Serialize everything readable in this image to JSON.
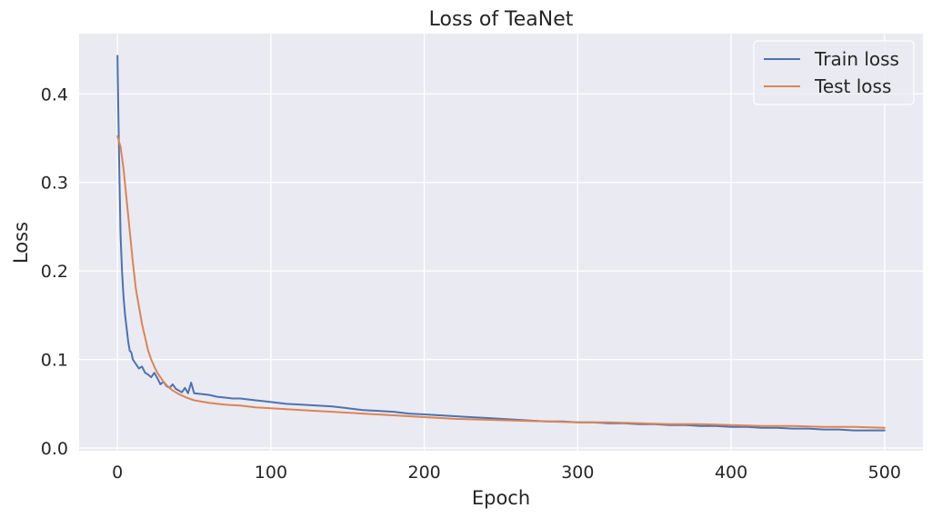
{
  "chart_data": {
    "type": "line",
    "title": "Loss of TeaNet",
    "xlabel": "Epoch",
    "ylabel": "Loss",
    "xlim": [
      -25,
      525
    ],
    "ylim": [
      -0.003,
      0.468
    ],
    "xticks": [
      0,
      100,
      200,
      300,
      400,
      500
    ],
    "xtick_labels": [
      "0",
      "100",
      "200",
      "300",
      "400",
      "500"
    ],
    "yticks": [
      0.0,
      0.1,
      0.2,
      0.3,
      0.4
    ],
    "ytick_labels": [
      "0.0",
      "0.1",
      "0.2",
      "0.3",
      "0.4"
    ],
    "grid": true,
    "legend_position": "top-right",
    "background": "#eaeaf2",
    "series": [
      {
        "name": "Train loss",
        "color": "#4c72b0",
        "x": [
          0,
          1,
          2,
          3,
          4,
          5,
          6,
          7,
          8,
          9,
          10,
          12,
          14,
          16,
          18,
          20,
          22,
          24,
          26,
          28,
          30,
          32,
          34,
          36,
          38,
          40,
          42,
          44,
          46,
          48,
          50,
          55,
          60,
          65,
          70,
          75,
          80,
          85,
          90,
          95,
          100,
          110,
          120,
          130,
          140,
          150,
          160,
          170,
          180,
          190,
          200,
          210,
          220,
          230,
          240,
          250,
          260,
          270,
          280,
          290,
          300,
          310,
          320,
          330,
          340,
          350,
          360,
          370,
          380,
          390,
          400,
          410,
          420,
          430,
          440,
          450,
          460,
          470,
          480,
          490,
          500
        ],
        "y": [
          0.443,
          0.33,
          0.24,
          0.2,
          0.17,
          0.15,
          0.135,
          0.12,
          0.11,
          0.108,
          0.1,
          0.095,
          0.09,
          0.092,
          0.085,
          0.083,
          0.08,
          0.085,
          0.079,
          0.072,
          0.075,
          0.07,
          0.068,
          0.072,
          0.067,
          0.065,
          0.063,
          0.068,
          0.062,
          0.074,
          0.062,
          0.061,
          0.06,
          0.058,
          0.057,
          0.056,
          0.056,
          0.055,
          0.054,
          0.053,
          0.052,
          0.05,
          0.049,
          0.048,
          0.047,
          0.045,
          0.043,
          0.042,
          0.041,
          0.039,
          0.038,
          0.037,
          0.036,
          0.035,
          0.034,
          0.033,
          0.032,
          0.031,
          0.03,
          0.03,
          0.029,
          0.029,
          0.028,
          0.028,
          0.027,
          0.027,
          0.026,
          0.026,
          0.025,
          0.025,
          0.024,
          0.024,
          0.023,
          0.023,
          0.022,
          0.022,
          0.021,
          0.021,
          0.02,
          0.02,
          0.02
        ]
      },
      {
        "name": "Test loss",
        "color": "#dd8452",
        "x": [
          0,
          2,
          4,
          6,
          8,
          10,
          12,
          14,
          16,
          18,
          20,
          22,
          24,
          26,
          28,
          30,
          32,
          34,
          36,
          38,
          40,
          45,
          50,
          60,
          70,
          80,
          90,
          100,
          120,
          140,
          160,
          180,
          200,
          220,
          240,
          260,
          280,
          300,
          320,
          340,
          360,
          380,
          400,
          420,
          440,
          460,
          480,
          500
        ],
        "y": [
          0.352,
          0.34,
          0.315,
          0.28,
          0.245,
          0.21,
          0.18,
          0.16,
          0.14,
          0.125,
          0.11,
          0.1,
          0.092,
          0.085,
          0.08,
          0.075,
          0.071,
          0.068,
          0.065,
          0.063,
          0.061,
          0.057,
          0.054,
          0.051,
          0.049,
          0.048,
          0.046,
          0.045,
          0.043,
          0.041,
          0.039,
          0.037,
          0.035,
          0.033,
          0.032,
          0.031,
          0.03,
          0.029,
          0.029,
          0.028,
          0.027,
          0.027,
          0.026,
          0.025,
          0.025,
          0.024,
          0.024,
          0.023
        ]
      }
    ]
  }
}
